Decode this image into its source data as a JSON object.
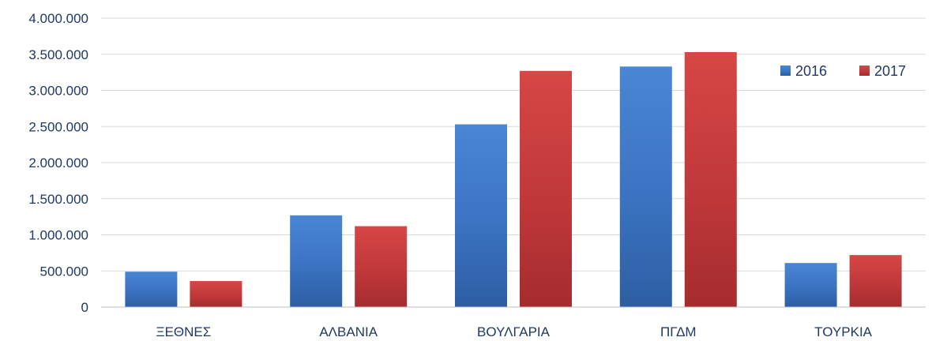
{
  "chart_data": {
    "type": "bar",
    "categories": [
      "ΞΕΘΝΕΣ",
      "ΑΛΒΑΝΙΑ",
      "ΒΟΥΛΓΑΡΙΑ",
      "ΠΓΔΜ",
      "ΤΟΥΡΚΙΑ"
    ],
    "series": [
      {
        "name": "2016",
        "values": [
          490000,
          1270000,
          2530000,
          3330000,
          610000
        ],
        "color": "#3a73c1"
      },
      {
        "name": "2017",
        "values": [
          360000,
          1120000,
          3270000,
          3530000,
          720000
        ],
        "color": "#c0383a"
      }
    ],
    "ylim": [
      0,
      4000000
    ],
    "yticks": [
      0,
      500000,
      1000000,
      1500000,
      2000000,
      2500000,
      3000000,
      3500000,
      4000000
    ],
    "ytick_labels": [
      "0",
      "500.000",
      "1.000.000",
      "1.500.000",
      "2.000.000",
      "2.500.000",
      "3.000.000",
      "3.500.000",
      "4.000.000"
    ],
    "grid": true,
    "legend": "top-right",
    "title": "",
    "xlabel": "",
    "ylabel": ""
  }
}
